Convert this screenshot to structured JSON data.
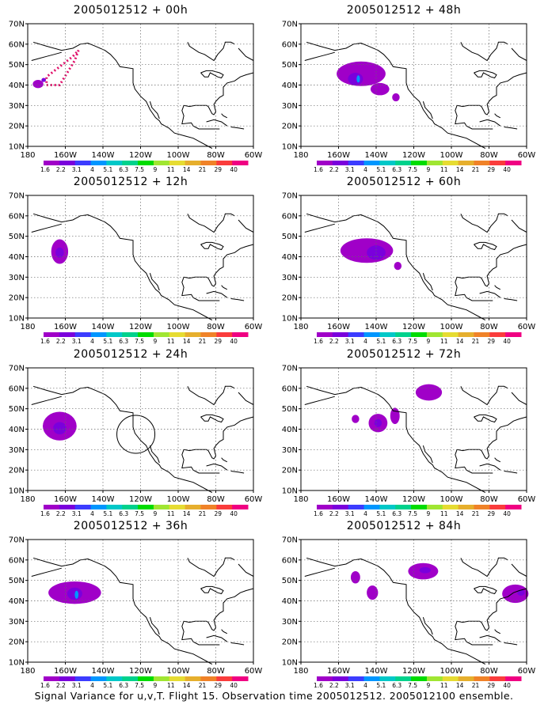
{
  "lat_labels": [
    "70N",
    "60N",
    "50N",
    "40N",
    "30N",
    "20N",
    "10N"
  ],
  "lon_labels": [
    "180",
    "160W",
    "140W",
    "120W",
    "100W",
    "80W",
    "60W"
  ],
  "colorbar": {
    "colors": [
      "#a000c8",
      "#7a00dc",
      "#3c3cff",
      "#0096ff",
      "#00c8c8",
      "#00d28c",
      "#00dc00",
      "#a0e632",
      "#e6dc32",
      "#e6af2d",
      "#f08228",
      "#fa3c3c",
      "#f00082"
    ],
    "labels": [
      "1.6",
      "2.2",
      "3.1",
      "4",
      "5.1",
      "6.3",
      "7.5",
      "9",
      "11",
      "14",
      "21",
      "29",
      "40"
    ]
  },
  "panels": [
    {
      "title": "2005012512 + 00h"
    },
    {
      "title": "2005012512 + 48h"
    },
    {
      "title": "2005012512 + 12h"
    },
    {
      "title": "2005012512 + 60h"
    },
    {
      "title": "2005012512 + 24h"
    },
    {
      "title": "2005012512 + 72h"
    },
    {
      "title": "2005012512 + 36h"
    },
    {
      "title": "2005012512 + 84h"
    }
  ],
  "footer": "Signal Variance for u,v,T. Flight 15. Observation time 2005012512. 2005012100 ensemble."
}
